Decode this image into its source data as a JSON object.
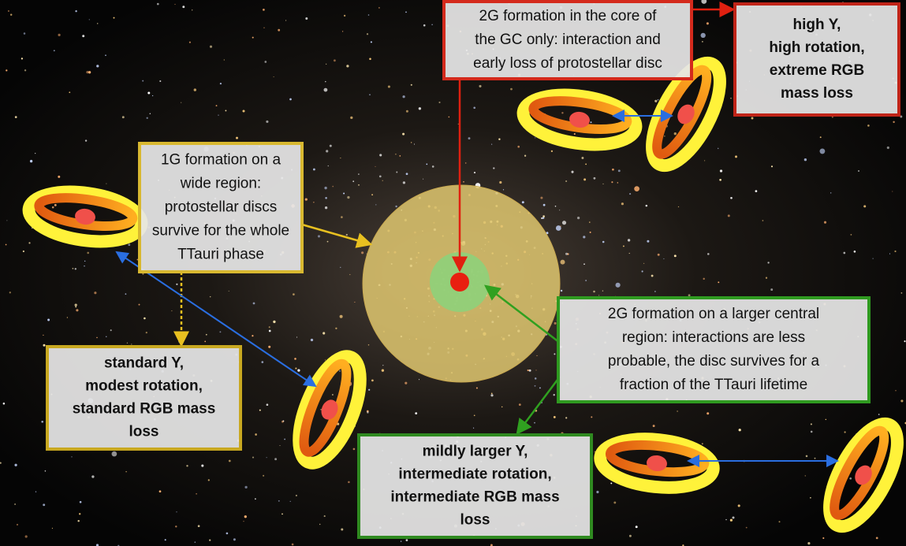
{
  "notes": [
    {
      "lines": [
        "2G formation in the core of",
        "the GC only: interaction and",
        "early loss of protostellar disc"
      ]
    },
    {
      "lines": [
        "1G formation on a",
        "wide region:",
        "protostellar discs",
        "survive for the whole",
        "TTauri phase"
      ]
    },
    {
      "lines": [
        "2G formation on a larger central",
        "region: interactions are less",
        "probable, the disc survives for a",
        "fraction of the TTauri lifetime"
      ]
    }
  ],
  "outcomes": [
    {
      "lines": [
        "high Y,",
        "high rotation,",
        "extreme RGB",
        "mass loss"
      ]
    },
    {
      "lines": [
        "standard Y,",
        "modest rotation,",
        "standard RGB mass",
        "loss"
      ]
    },
    {
      "lines": [
        "mildly larger Y,",
        "intermediate rotation,",
        "intermediate RGB mass",
        "loss"
      ]
    }
  ]
}
